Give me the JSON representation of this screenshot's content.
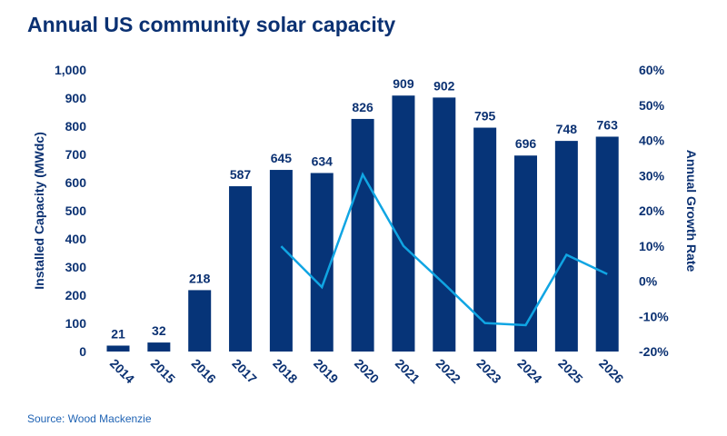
{
  "chart_data": {
    "type": "bar",
    "title": "Annual US community solar capacity",
    "source": "Source: Wood Mackenzie",
    "categories": [
      "2014",
      "2015",
      "2016",
      "2017",
      "2018",
      "2019",
      "2020",
      "2021",
      "2022",
      "2023",
      "2024",
      "2025",
      "2026"
    ],
    "series": [
      {
        "type": "bar",
        "axis": "left",
        "values": [
          21,
          32,
          218,
          587,
          645,
          634,
          826,
          909,
          902,
          795,
          696,
          748,
          763
        ],
        "color": "#063478"
      },
      {
        "type": "line",
        "axis": "right",
        "values": [
          null,
          null,
          null,
          null,
          9.9,
          -1.7,
          30.3,
          10.0,
          -0.8,
          -11.9,
          -12.5,
          7.5,
          2.0
        ],
        "color": "#10a5e3"
      }
    ],
    "ylabel": "Installed Capacity (MWdc)",
    "y2label": "Annual Growth Rate",
    "ylim": [
      0,
      1000
    ],
    "y2lim": [
      -20,
      60
    ],
    "yticks": [
      "0",
      "100",
      "200",
      "300",
      "400",
      "500",
      "600",
      "700",
      "800",
      "900",
      "1,000"
    ],
    "y2ticks": [
      "-20%",
      "-10%",
      "0%",
      "10%",
      "20%",
      "30%",
      "40%",
      "50%",
      "60%"
    ],
    "grid": false,
    "legend": "none"
  }
}
